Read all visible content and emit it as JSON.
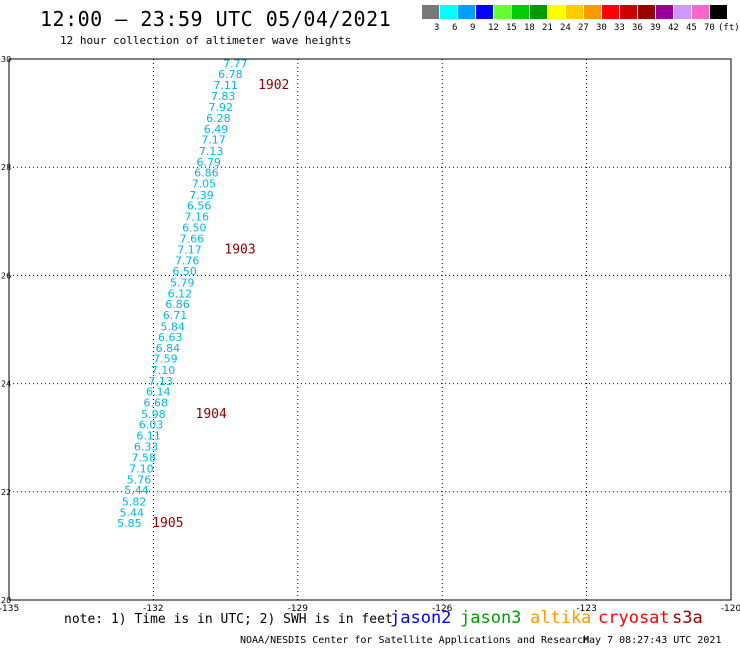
{
  "header": {
    "title": "12:00 – 23:59 UTC 05/04/2021",
    "subtitle": "12 hour collection of altimeter wave heights"
  },
  "legend": {
    "unit": "(ft)",
    "items": [
      {
        "label": "3",
        "color": "#787878"
      },
      {
        "label": "6",
        "color": "#00ffff"
      },
      {
        "label": "9",
        "color": "#00a0ff"
      },
      {
        "label": "12",
        "color": "#0000ff"
      },
      {
        "label": "15",
        "color": "#66ff33"
      },
      {
        "label": "18",
        "color": "#00cc00"
      },
      {
        "label": "21",
        "color": "#009900"
      },
      {
        "label": "24",
        "color": "#ffff00"
      },
      {
        "label": "27",
        "color": "#ffcc00"
      },
      {
        "label": "30",
        "color": "#ff9900"
      },
      {
        "label": "33",
        "color": "#ff0000"
      },
      {
        "label": "36",
        "color": "#cc0000"
      },
      {
        "label": "39",
        "color": "#990000"
      },
      {
        "label": "42",
        "color": "#990099"
      },
      {
        "label": "45",
        "color": "#cc99ff"
      },
      {
        "label": "70",
        "color": "#ff66cc"
      },
      {
        "label": "",
        "color": "#000000"
      }
    ]
  },
  "chart_data": {
    "type": "scatter",
    "x_ticks": [
      "-135",
      "-132",
      "-129",
      "-126",
      "-123",
      "-120"
    ],
    "y_ticks": [
      "20",
      "22",
      "24",
      "26",
      "28",
      "30"
    ],
    "xlim": [
      -135,
      -120
    ],
    "ylim": [
      20,
      30
    ],
    "grid": true,
    "points": [
      {
        "lon": -130.3,
        "lat": 29.92,
        "label": "7.77"
      },
      {
        "lon": -130.4,
        "lat": 29.72,
        "label": "6.78"
      },
      {
        "lon": -130.5,
        "lat": 29.52,
        "label": "7.11"
      },
      {
        "lon": -130.55,
        "lat": 29.32,
        "label": "7.83"
      },
      {
        "lon": -130.6,
        "lat": 29.11,
        "label": "7.92"
      },
      {
        "lon": -130.65,
        "lat": 28.91,
        "label": "6.28"
      },
      {
        "lon": -130.7,
        "lat": 28.71,
        "label": "6.49"
      },
      {
        "lon": -130.75,
        "lat": 28.51,
        "label": "7.17"
      },
      {
        "lon": -130.8,
        "lat": 28.3,
        "label": "7.13"
      },
      {
        "lon": -130.85,
        "lat": 28.1,
        "label": "6.79"
      },
      {
        "lon": -130.9,
        "lat": 27.9,
        "label": "6.86"
      },
      {
        "lon": -130.95,
        "lat": 27.7,
        "label": "7.05"
      },
      {
        "lon": -131.0,
        "lat": 27.49,
        "label": "7.39"
      },
      {
        "lon": -131.05,
        "lat": 27.29,
        "label": "6.56"
      },
      {
        "lon": -131.1,
        "lat": 27.09,
        "label": "7.16"
      },
      {
        "lon": -131.15,
        "lat": 26.89,
        "label": "6.50"
      },
      {
        "lon": -131.2,
        "lat": 26.68,
        "label": "7.66"
      },
      {
        "lon": -131.25,
        "lat": 26.48,
        "label": "7.17"
      },
      {
        "lon": -131.3,
        "lat": 26.28,
        "label": "7.76"
      },
      {
        "lon": -131.35,
        "lat": 26.08,
        "label": "6.50"
      },
      {
        "lon": -131.4,
        "lat": 25.87,
        "label": "5.79"
      },
      {
        "lon": -131.45,
        "lat": 25.67,
        "label": "6.12"
      },
      {
        "lon": -131.5,
        "lat": 25.47,
        "label": "6.86"
      },
      {
        "lon": -131.55,
        "lat": 25.27,
        "label": "6.71"
      },
      {
        "lon": -131.6,
        "lat": 25.06,
        "label": "5.84"
      },
      {
        "lon": -131.65,
        "lat": 24.86,
        "label": "6.63"
      },
      {
        "lon": -131.7,
        "lat": 24.66,
        "label": "6.84"
      },
      {
        "lon": -131.75,
        "lat": 24.46,
        "label": "7.59"
      },
      {
        "lon": -131.8,
        "lat": 24.25,
        "label": "7.10"
      },
      {
        "lon": -131.85,
        "lat": 24.05,
        "label": "7.13"
      },
      {
        "lon": -131.9,
        "lat": 23.85,
        "label": "6.14"
      },
      {
        "lon": -131.95,
        "lat": 23.65,
        "label": "6.68"
      },
      {
        "lon": -132.0,
        "lat": 23.44,
        "label": "5.98"
      },
      {
        "lon": -132.05,
        "lat": 23.24,
        "label": "6.03"
      },
      {
        "lon": -132.1,
        "lat": 23.04,
        "label": "6.11"
      },
      {
        "lon": -132.15,
        "lat": 22.84,
        "label": "6.33"
      },
      {
        "lon": -132.2,
        "lat": 22.63,
        "label": "7.58"
      },
      {
        "lon": -132.25,
        "lat": 22.43,
        "label": "7.10"
      },
      {
        "lon": -132.3,
        "lat": 22.23,
        "label": "5.76"
      },
      {
        "lon": -132.35,
        "lat": 22.03,
        "label": "5.44"
      },
      {
        "lon": -132.4,
        "lat": 21.82,
        "label": "5.82"
      },
      {
        "lon": -132.45,
        "lat": 21.62,
        "label": "5.44"
      },
      {
        "lon": -132.5,
        "lat": 21.42,
        "label": "5.85"
      }
    ],
    "time_labels": [
      {
        "lon": -129.5,
        "lat": 29.52,
        "label": "1902"
      },
      {
        "lon": -130.2,
        "lat": 26.48,
        "label": "1903"
      },
      {
        "lon": -130.8,
        "lat": 23.44,
        "label": "1904"
      },
      {
        "lon": -131.7,
        "lat": 21.42,
        "label": "1905"
      }
    ]
  },
  "footer": {
    "note": "note: 1) Time is in UTC; 2) SWH is in feet",
    "satellites": [
      {
        "name": "jason2",
        "color": "#0000ff"
      },
      {
        "name": "jason3",
        "color": "#009900"
      },
      {
        "name": "altika",
        "color": "#ff9900"
      },
      {
        "name": "cryosat",
        "color": "#ff0000"
      },
      {
        "name": "s3a",
        "color": "#990000"
      }
    ],
    "credit": "NOAA/NESDIS Center for Satellite Applications and Research",
    "timestamp": "May  7 08:27:43 UTC 2021"
  }
}
